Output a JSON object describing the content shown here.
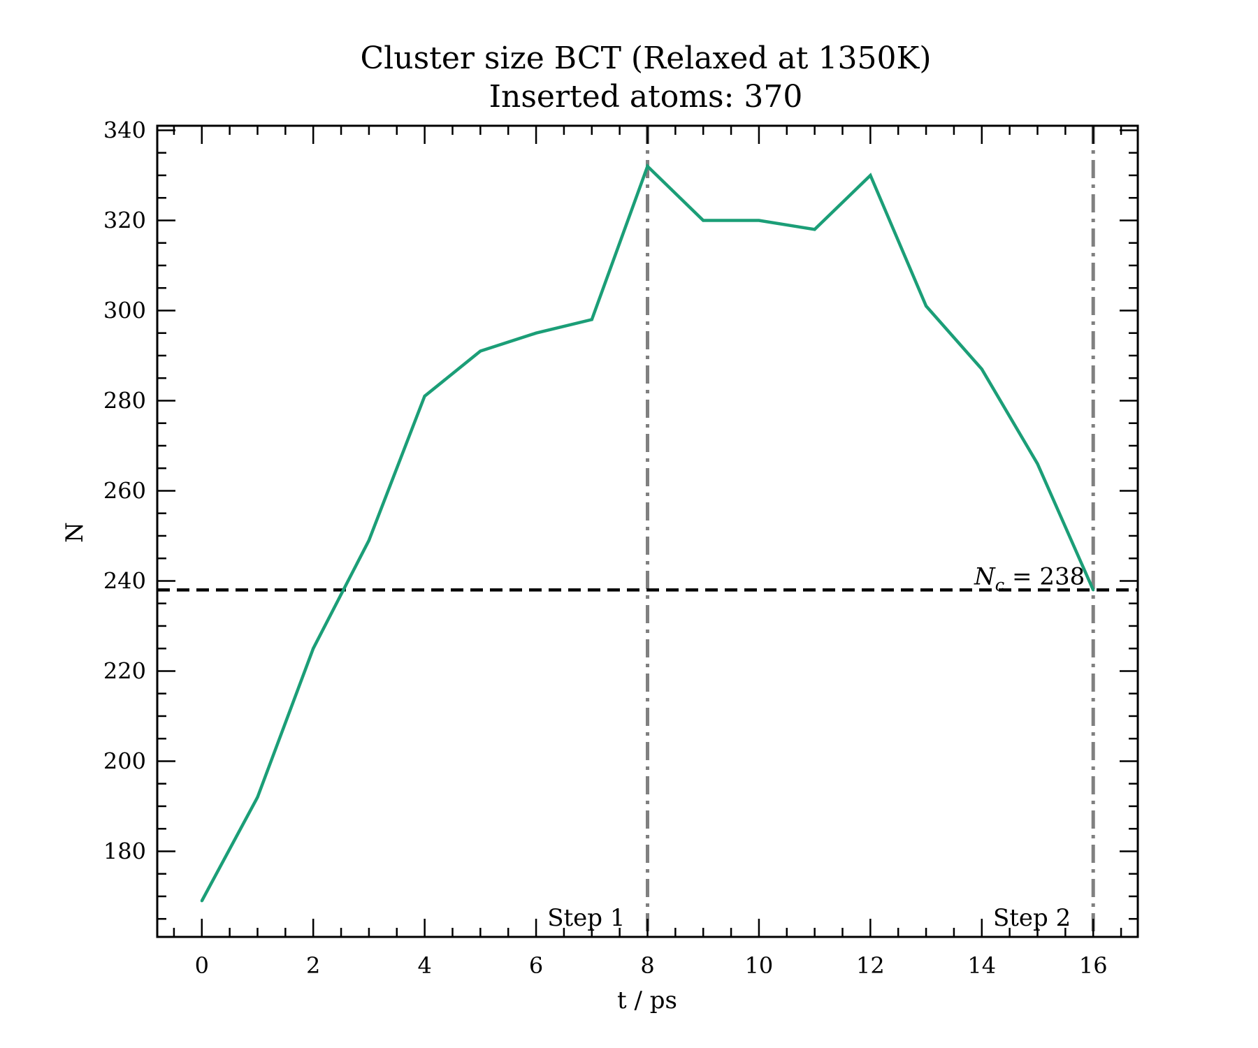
{
  "chart_data": {
    "type": "line",
    "title": "Cluster size BCT (Relaxed at 1350K)",
    "subtitle": "Inserted atoms: 370",
    "xlabel": "t / ps",
    "ylabel": "N",
    "xlim": [
      -0.8,
      16.8
    ],
    "ylim": [
      161,
      341
    ],
    "xticks": [
      0,
      2,
      4,
      6,
      8,
      10,
      12,
      14,
      16
    ],
    "yticks": [
      180,
      200,
      220,
      240,
      260,
      280,
      300,
      320,
      340
    ],
    "x_minor_step": 0.5,
    "y_minor_step": 5,
    "grid": false,
    "series": [
      {
        "color": "#1b9e77",
        "x": [
          0,
          1,
          2,
          3,
          4,
          5,
          6,
          7,
          8,
          9,
          10,
          11,
          12,
          13,
          14,
          15,
          16
        ],
        "values": [
          169,
          192,
          225,
          249,
          281,
          291,
          295,
          298,
          332,
          320,
          320,
          318,
          330,
          301,
          287,
          266,
          238
        ]
      }
    ],
    "hlines": [
      {
        "y": 238,
        "color": "#000000",
        "style": "dashed",
        "label_prefix": "N",
        "label_sub": "c",
        "label_suffix": " = 238"
      }
    ],
    "vlines": [
      {
        "x": 8,
        "color": "#808080",
        "style": "dashdot",
        "label": "Step 1"
      },
      {
        "x": 16,
        "color": "#808080",
        "style": "dashdot",
        "label": "Step 2"
      }
    ]
  }
}
